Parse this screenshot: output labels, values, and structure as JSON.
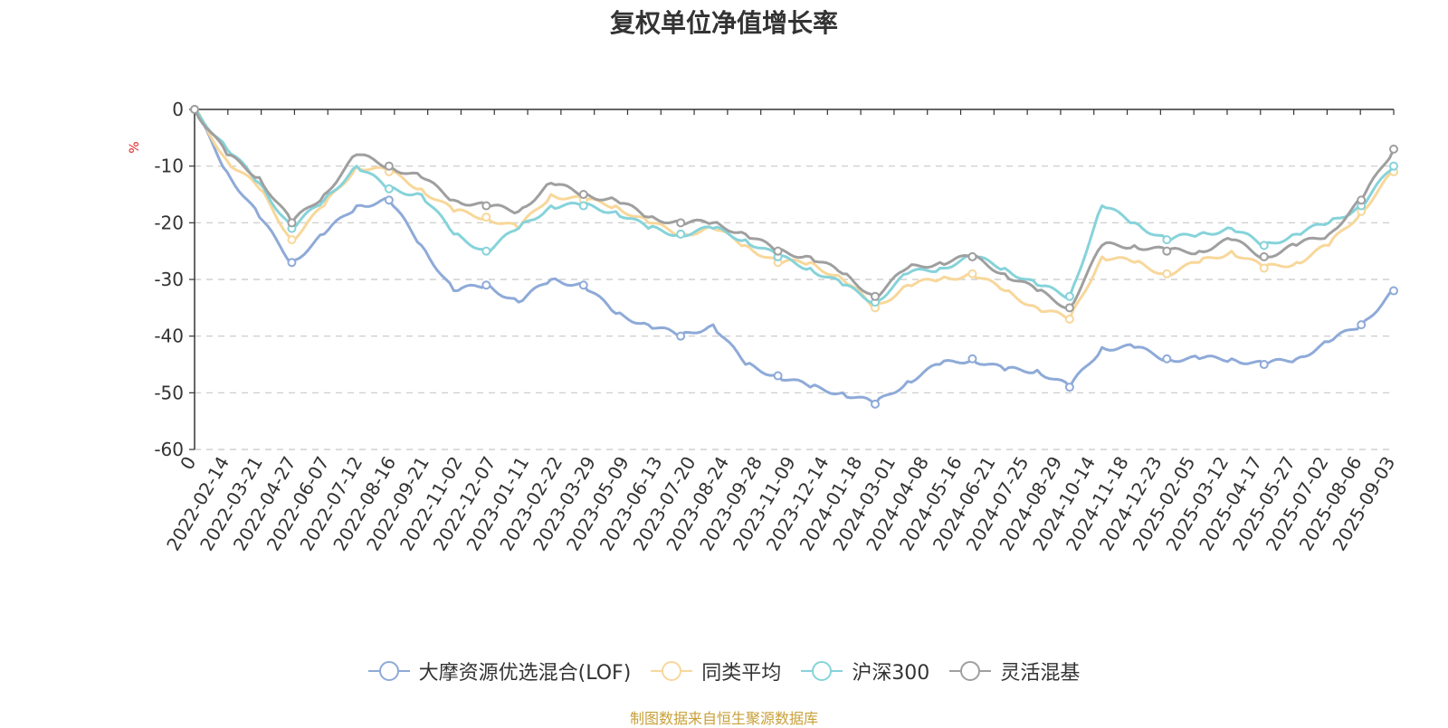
{
  "chart_data": {
    "type": "line",
    "title": "复权单位净值增长率",
    "ylabel": "%",
    "ylim": [
      -60,
      0
    ],
    "yticks": [
      0,
      -10,
      -20,
      -30,
      -40,
      -50,
      -60
    ],
    "x_tick_labels": [
      "0",
      "2022-02-14",
      "2022-03-21",
      "2022-04-27",
      "2022-06-07",
      "2022-07-12",
      "2022-08-16",
      "2022-09-21",
      "2022-11-02",
      "2022-12-07",
      "2023-01-11",
      "2023-02-22",
      "2023-03-29",
      "2023-05-09",
      "2023-06-13",
      "2023-07-20",
      "2023-08-24",
      "2023-09-28",
      "2023-11-09",
      "2023-12-14",
      "2024-01-18",
      "2024-03-01",
      "2024-04-08",
      "2024-05-16",
      "2024-06-21",
      "2024-07-25",
      "2024-08-29",
      "2024-10-14",
      "2024-11-18",
      "2024-12-23",
      "2025-02-05",
      "2025-03-12",
      "2025-04-17",
      "2025-05-27",
      "2025-07-02",
      "2025-08-06",
      "2025-09-03"
    ],
    "grid": "horizontal-dashed",
    "legend_position": "bottom",
    "series": [
      {
        "name": "大摩资源优选混合(LOF)",
        "color": "#8eaad8",
        "values": [
          0,
          -11,
          -19,
          -27,
          -22,
          -17,
          -16,
          -24,
          -32,
          -31,
          -34,
          -30,
          -31,
          -36,
          -38,
          -40,
          -38,
          -45,
          -47,
          -49,
          -50,
          -52,
          -48,
          -45,
          -44,
          -46,
          -46,
          -49,
          -42,
          -42,
          -44,
          -44,
          -44,
          -45,
          -44,
          -41,
          -38,
          -32
        ]
      },
      {
        "name": "同类平均",
        "color": "#f8d79a",
        "values": [
          0,
          -9,
          -14,
          -23,
          -17,
          -10,
          -11,
          -14,
          -18,
          -19,
          -21,
          -15,
          -16,
          -17,
          -20,
          -22,
          -21,
          -24,
          -27,
          -27,
          -30,
          -35,
          -31,
          -30,
          -29,
          -32,
          -35,
          -37,
          -26,
          -27,
          -29,
          -27,
          -25,
          -28,
          -27,
          -24,
          -18,
          -11
        ]
      },
      {
        "name": "沪深300",
        "color": "#86d3da",
        "values": [
          0,
          -7,
          -13,
          -21,
          -16,
          -10,
          -14,
          -15,
          -22,
          -25,
          -21,
          -17,
          -17,
          -18,
          -21,
          -22,
          -21,
          -23,
          -26,
          -28,
          -31,
          -34,
          -29,
          -28,
          -26,
          -28,
          -31,
          -33,
          -17,
          -20,
          -23,
          -22,
          -21,
          -24,
          -22,
          -20,
          -17,
          -10
        ]
      },
      {
        "name": "灵活混基",
        "color": "#9f9f9f",
        "values": [
          0,
          -8,
          -12,
          -20,
          -15,
          -8,
          -10,
          -12,
          -16,
          -17,
          -18,
          -13,
          -15,
          -16,
          -19,
          -20,
          -20,
          -22,
          -25,
          -26,
          -29,
          -33,
          -28,
          -27,
          -26,
          -29,
          -32,
          -35,
          -24,
          -24,
          -25,
          -25,
          -23,
          -26,
          -24,
          -22,
          -16,
          -7
        ]
      }
    ]
  },
  "source_note": "制图数据来自恒生聚源数据库"
}
